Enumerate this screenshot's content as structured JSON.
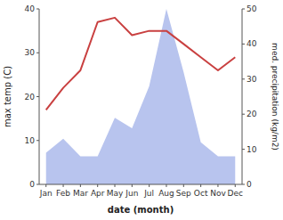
{
  "chart_data": {
    "type": "line",
    "categories": [
      "Jan",
      "Feb",
      "Mar",
      "Apr",
      "May",
      "Jun",
      "Jul",
      "Aug",
      "Sep",
      "Oct",
      "Nov",
      "Dec"
    ],
    "series": [
      {
        "type": "area",
        "color": "#b8c4ee",
        "axis": "y2",
        "values": [
          9,
          13,
          8,
          8,
          19,
          16,
          28,
          50,
          32,
          12,
          8,
          8
        ]
      },
      {
        "type": "line",
        "color": "#c94040",
        "values": [
          17,
          22,
          26,
          37,
          38,
          34,
          35,
          35,
          32,
          29,
          26,
          29
        ]
      }
    ],
    "xlabel": "date (month)",
    "ylabel": "max temp (C)",
    "y2label": "med. precipitation (kg/m2)",
    "ylim": [
      0,
      40
    ],
    "yticks": [
      0,
      10,
      20,
      30,
      40
    ],
    "y2lim": [
      0,
      50
    ],
    "y2ticks": [
      0,
      10,
      20,
      30,
      40,
      50
    ],
    "grid": false
  }
}
